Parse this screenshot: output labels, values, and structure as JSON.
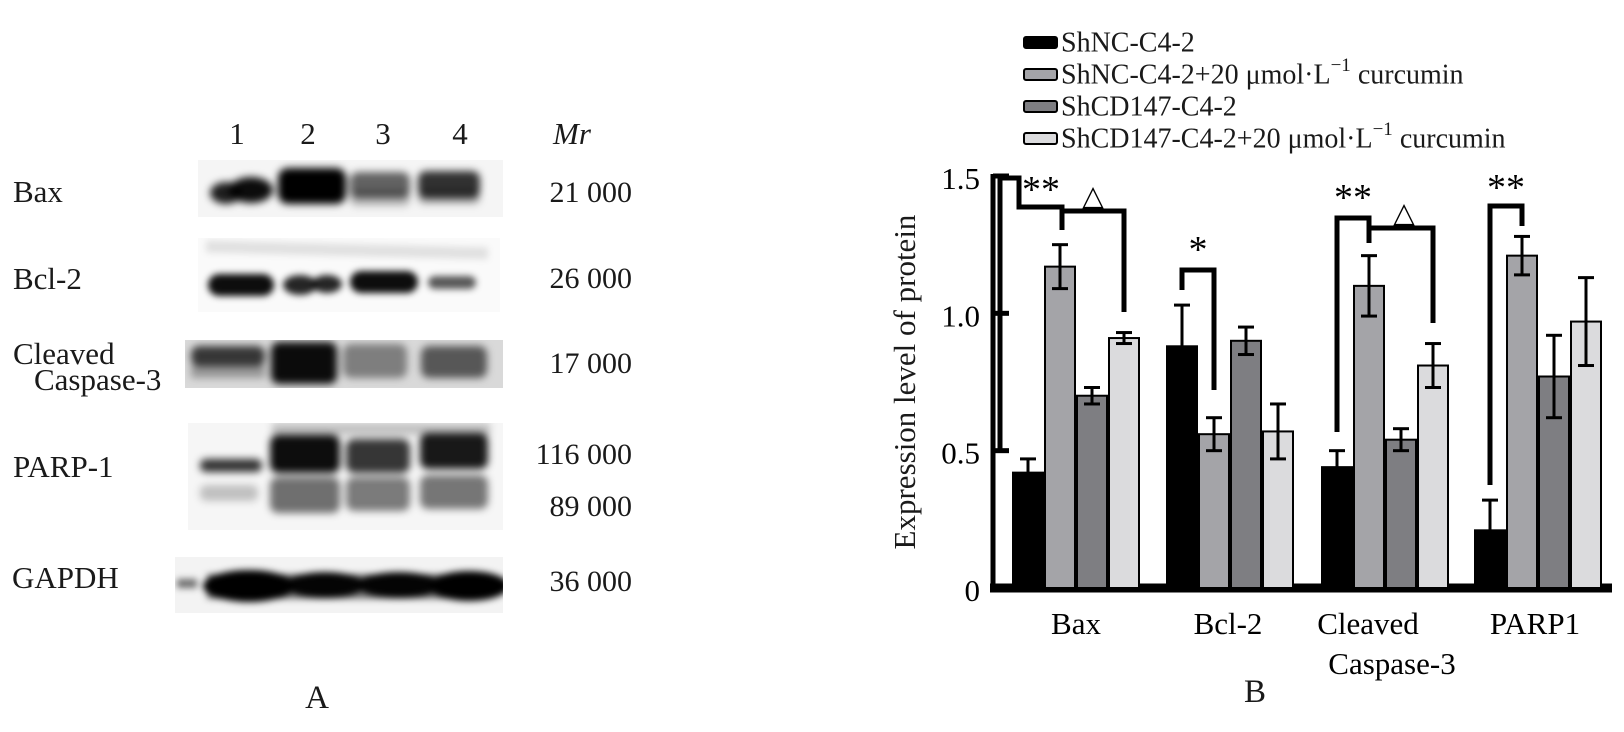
{
  "panel_a": {
    "caption": "A",
    "lane_header": {
      "lanes": [
        "1",
        "2",
        "3",
        "4"
      ],
      "mr_label": "Mr"
    },
    "rows": [
      {
        "name": "Bax",
        "label_lines": [
          "Bax"
        ],
        "mr_values": [
          "21 000"
        ]
      },
      {
        "name": "Bcl-2",
        "label_lines": [
          "Bcl-2"
        ],
        "mr_values": [
          "26 000"
        ]
      },
      {
        "name": "Cleaved Caspase-3",
        "label_lines": [
          "Cleaved",
          "Caspase-3"
        ],
        "mr_values": [
          "17 000"
        ]
      },
      {
        "name": "PARP-1",
        "label_lines": [
          "PARP-1"
        ],
        "mr_values": [
          "116 000",
          "89 000"
        ]
      },
      {
        "name": "GAPDH",
        "label_lines": [
          "GAPDH"
        ],
        "mr_values": [
          "36 000"
        ]
      }
    ]
  },
  "panel_b": {
    "caption": "B",
    "legend": [
      {
        "pre": "ShNC-C4-2",
        "sup": "",
        "post": "",
        "color": "#000000"
      },
      {
        "pre": "ShNC-C4-2+20 μmol·L",
        "sup": "−1",
        "post": " curcumin",
        "color": "#a4a4a8"
      },
      {
        "pre": "ShCD147-C4-2",
        "sup": "",
        "post": "",
        "color": "#7e7e82"
      },
      {
        "pre": "ShCD147-C4-2+20 μmol·L",
        "sup": "−1",
        "post": " curcumin",
        "color": "#dbdbdd"
      }
    ]
  },
  "chart_data": {
    "type": "bar",
    "title": "",
    "xlabel": "",
    "ylabel": "Expression level of  protein",
    "categories": [
      "Bax",
      "Bcl-2",
      "Cleaved Caspase-3",
      "PARP1"
    ],
    "category_lines": [
      [
        "Bax"
      ],
      [
        "Bcl-2"
      ],
      [
        "Cleaved",
        "Caspase-3"
      ],
      [
        "PARP1"
      ]
    ],
    "ylim": [
      0,
      1.5
    ],
    "yticks": [
      0,
      0.5,
      1.0,
      1.5
    ],
    "ytick_labels": [
      "0",
      "0.5",
      "1.0",
      "1.5"
    ],
    "grid": false,
    "legend_position": "top-right",
    "series": [
      {
        "name": "ShNC-C4-2",
        "color": "#000000",
        "values": [
          0.42,
          0.88,
          0.44,
          0.21
        ],
        "errors": [
          0.05,
          0.15,
          0.06,
          0.11
        ]
      },
      {
        "name": "ShNC-C4-2+20 μmol·L−1 curcumin",
        "color": "#a4a4a8",
        "values": [
          1.17,
          0.56,
          1.1,
          1.21
        ],
        "errors": [
          0.08,
          0.06,
          0.11,
          0.07
        ]
      },
      {
        "name": "ShCD147-C4-2",
        "color": "#7e7e82",
        "values": [
          0.7,
          0.9,
          0.54,
          0.77
        ],
        "errors": [
          0.03,
          0.05,
          0.04,
          0.15
        ]
      },
      {
        "name": "ShCD147-C4-2+20 μmol·L−1 curcumin",
        "color": "#dbdbdd",
        "values": [
          0.91,
          0.57,
          0.81,
          0.97
        ],
        "errors": [
          0.02,
          0.1,
          0.08,
          0.16
        ]
      }
    ],
    "significance": [
      {
        "label": "**",
        "group": 0,
        "from": 0,
        "to": 1
      },
      {
        "label": "△",
        "group": 0,
        "from": 1,
        "to": 3
      },
      {
        "label": "*",
        "group": 1,
        "from": 0,
        "to": 1
      },
      {
        "label": "**",
        "group": 2,
        "from": 0,
        "to": 1
      },
      {
        "label": "△",
        "group": 2,
        "from": 1,
        "to": 3
      },
      {
        "label": "**",
        "group": 3,
        "from": 0,
        "to": 1
      }
    ]
  }
}
